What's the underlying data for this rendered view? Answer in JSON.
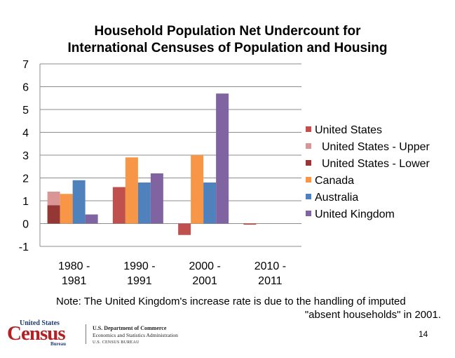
{
  "slide": {
    "title_line1": "Household Population Net Undercount for",
    "title_line2": "International Censuses of Population and Housing",
    "note_line1": "Note:  The United Kingdom's increase rate is due to the handling of imputed",
    "note_line2": "\"absent households\" in 2001.",
    "page_number": "14"
  },
  "footer": {
    "logo_top": "United States",
    "logo_main": "Census",
    "logo_sub": "Bureau",
    "dept_line1": "U.S. Department of Commerce",
    "dept_line2": "Economics and Statistics Administration",
    "dept_line3": "U.S. CENSUS BUREAU"
  },
  "chart_data": {
    "type": "bar",
    "title": "Household Population Net Undercount for International Censuses of Population and Housing",
    "categories": [
      [
        "1980 -",
        "1981"
      ],
      [
        "1990 -",
        "1991"
      ],
      [
        "2000 -",
        "2001"
      ],
      [
        "2010 -",
        "2011"
      ]
    ],
    "ylim": [
      -1,
      7
    ],
    "yticks": [
      -1,
      0,
      1,
      2,
      3,
      4,
      5,
      6,
      7
    ],
    "grid": true,
    "legend_position": "right",
    "series": [
      {
        "name": "United States",
        "color": "#c0504d",
        "values": [
          null,
          1.6,
          -0.5,
          -0.05
        ]
      },
      {
        "name": "United States - Upper",
        "color": "#d99694",
        "values": [
          1.4,
          null,
          null,
          null
        ]
      },
      {
        "name": "United States - Lower",
        "color": "#953735",
        "values": [
          0.8,
          null,
          null,
          null
        ]
      },
      {
        "name": "Canada",
        "color": "#f79646",
        "values": [
          1.3,
          2.9,
          3.0,
          null
        ]
      },
      {
        "name": "Australia",
        "color": "#4f81bd",
        "values": [
          1.9,
          1.8,
          1.8,
          null
        ]
      },
      {
        "name": "United Kingdom",
        "color": "#8064a2",
        "values": [
          0.4,
          2.2,
          5.7,
          null
        ]
      }
    ]
  }
}
